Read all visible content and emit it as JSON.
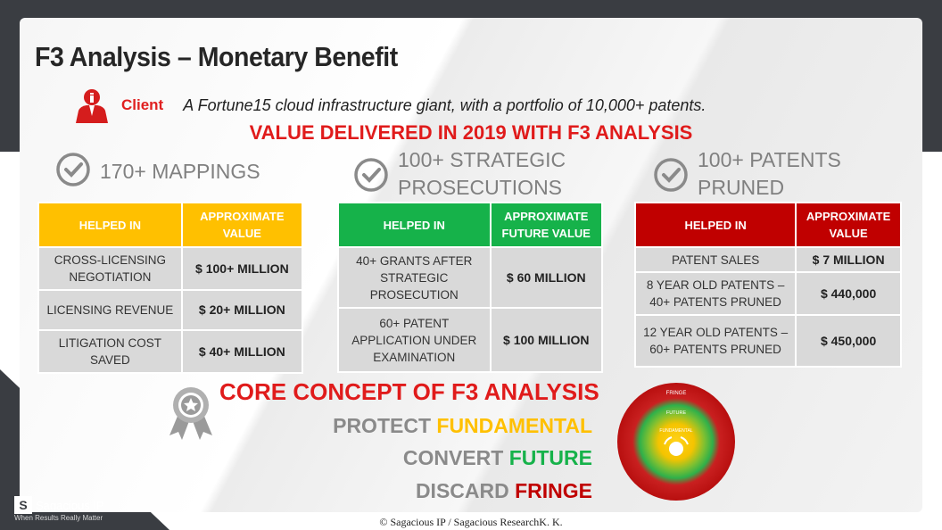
{
  "slide": {
    "title": "F3 Analysis – Monetary Benefit",
    "client_label": "Client",
    "client_desc": "A Fortune15 cloud infrastructure giant, with a portfolio of 10,000+ patents.",
    "value_heading": "VALUE DELIVERED IN 2019 WITH F3 ANALYSIS"
  },
  "columns": [
    {
      "title": "170+ MAPPINGS",
      "header_color": "#ffc000",
      "th_help": "HELPED IN",
      "th_value": "APPROXIMATE VALUE",
      "rows": [
        {
          "help": "CROSS-LICENSING NEGOTIATION",
          "value": "$ 100+ MILLION"
        },
        {
          "help": "LICENSING REVENUE",
          "value": "$ 20+ MILLION"
        },
        {
          "help": "LITIGATION COST SAVED",
          "value": "$ 40+ MILLION"
        }
      ]
    },
    {
      "title": "100+ STRATEGIC PROSECUTIONS",
      "header_color": "#16b24a",
      "th_help": "HELPED IN",
      "th_value": "APPROXIMATE FUTURE VALUE",
      "rows": [
        {
          "help": "40+ GRANTS AFTER STRATEGIC PROSECUTION",
          "value": "$ 60 MILLION"
        },
        {
          "help": "60+ PATENT APPLICATION UNDER EXAMINATION",
          "value": "$ 100 MILLION"
        }
      ]
    },
    {
      "title": "100+ PATENTS PRUNED",
      "header_color": "#c00000",
      "th_help": "HELPED IN",
      "th_value": "APPROXIMATE VALUE",
      "rows": [
        {
          "help": "PATENT SALES",
          "value": "$ 7 MILLION"
        },
        {
          "help": "8 YEAR OLD PATENTS – 40+ PATENTS PRUNED",
          "value": "$ 440,000"
        },
        {
          "help": "12 YEAR OLD PATENTS – 60+ PATENTS PRUNED",
          "value": "$ 450,000"
        }
      ]
    }
  ],
  "core": {
    "title": "CORE CONCEPT OF F3 ANALYSIS",
    "lines": [
      {
        "verb": "PROTECT",
        "word": "FUNDAMENTAL",
        "color": "#ffc000"
      },
      {
        "verb": "CONVERT",
        "word": "FUTURE",
        "color": "#16b24a"
      },
      {
        "verb": "DISCARD",
        "word": "FRINGE",
        "color": "#c00000"
      }
    ],
    "rings": [
      "FRINGE",
      "FUTURE",
      "FUNDAMENTAL"
    ]
  },
  "brand": {
    "logo_mark": "S",
    "name": "Sagacious IP",
    "tagline": "When Results Really Matter"
  },
  "footer": "© Sagacious IP / Sagacious ResearchK. K."
}
